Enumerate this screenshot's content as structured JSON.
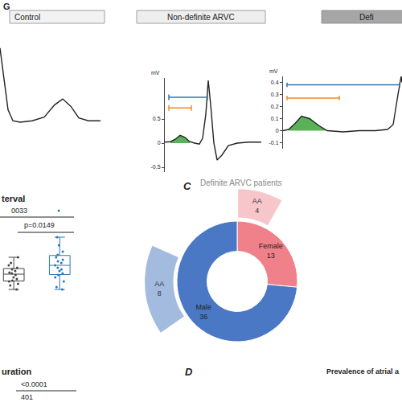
{
  "chart_data": [
    {
      "type": "line",
      "title": "Control",
      "x": [
        0,
        20,
        40,
        64,
        100,
        160,
        220,
        272,
        312,
        352,
        392,
        440,
        500
      ],
      "values": [
        1.0,
        0.6,
        0.15,
        0.0,
        -0.02,
        0.0,
        0.05,
        0.22,
        0.3,
        0.2,
        0.04,
        0.0,
        0.0
      ],
      "color": "#222222",
      "xlim": [
        0,
        500
      ],
      "ylim": [
        -0.33,
        1.22
      ],
      "tick_labels": false
    },
    {
      "type": "line",
      "title": "Non-definite ARVC",
      "ylabel": "mV",
      "x": [
        0,
        28,
        52,
        76,
        100,
        124,
        148,
        172,
        188,
        204,
        216,
        228,
        244,
        260,
        284,
        316,
        360,
        420,
        480
      ],
      "values": [
        0.02,
        0.03,
        0.08,
        0.16,
        0.12,
        0.03,
        0.0,
        -0.02,
        0.1,
        0.6,
        1.3,
        0.8,
        0.0,
        -0.35,
        -0.25,
        -0.05,
        0.0,
        0.02,
        0.02
      ],
      "color": "#222222",
      "xlim": [
        0,
        480
      ],
      "ylim": [
        -0.6,
        1.35
      ],
      "yticks": [
        -0.5,
        0,
        0.5
      ],
      "tick_labels": "y",
      "highlight": [
        20,
        132
      ],
      "intervals": [
        {
          "x": [
            20,
            212
          ],
          "y": 0.95
        },
        {
          "x": [
            20,
            132
          ],
          "y": 0.73
        }
      ]
    },
    {
      "type": "line",
      "title": "Defi",
      "ylabel": "mV",
      "x": [
        0,
        28,
        60,
        92,
        132,
        180,
        220,
        300,
        380,
        460,
        520,
        548,
        572,
        588,
        592
      ],
      "values": [
        0.0,
        0.01,
        0.06,
        0.12,
        0.1,
        0.04,
        0.0,
        -0.01,
        0.0,
        0.0,
        0.01,
        0.05,
        0.3,
        0.45,
        0.4
      ],
      "color": "#222222",
      "xlim": [
        0,
        592
      ],
      "ylim": [
        -0.15,
        0.45
      ],
      "yticks": [
        -0.1,
        0,
        0.1,
        0.2,
        0.3,
        0.4
      ],
      "tick_labels": "y",
      "highlight": [
        20,
        220
      ],
      "intervals": [
        {
          "x": [
            20,
            580
          ],
          "y": 0.38
        },
        {
          "x": [
            20,
            280
          ],
          "y": 0.27
        }
      ]
    },
    {
      "type": "box",
      "title": "terval",
      "comparisons": [
        "0033",
        "p=0.0149"
      ],
      "xlim": [
        -0.3,
        1.45
      ],
      "ylim": [
        0,
        120
      ],
      "tick_labels": false,
      "series": [
        {
          "color": "#444444",
          "values": [
            55,
            48,
            45,
            42,
            40,
            38,
            36,
            35,
            33,
            30,
            28,
            26,
            25,
            22,
            20,
            15
          ]
        },
        {
          "color": "#2e75b6",
          "values": [
            113,
            80,
            70,
            62,
            58,
            55,
            52,
            50,
            48,
            45,
            42,
            40,
            38,
            35,
            33,
            30,
            25,
            18,
            15
          ]
        }
      ]
    },
    {
      "type": "pie",
      "panel": "C",
      "title": "Definite ARVC patients",
      "categories": [
        "Female",
        "Male"
      ],
      "values": [
        13,
        36
      ],
      "colors": [
        "#f08089",
        "#4a78c4"
      ],
      "data_labels": true,
      "subgroups": [
        {
          "name": "AA",
          "parent": "Female",
          "value": 4,
          "color": "#f7c6ca"
        },
        {
          "name": "AA",
          "parent": "Male",
          "value": 8,
          "color": "#a4bbe0"
        }
      ]
    }
  ],
  "annotations": [
    "G",
    "uration",
    "<0.0001",
    "401",
    "D",
    "Prevalence of atrial a"
  ]
}
